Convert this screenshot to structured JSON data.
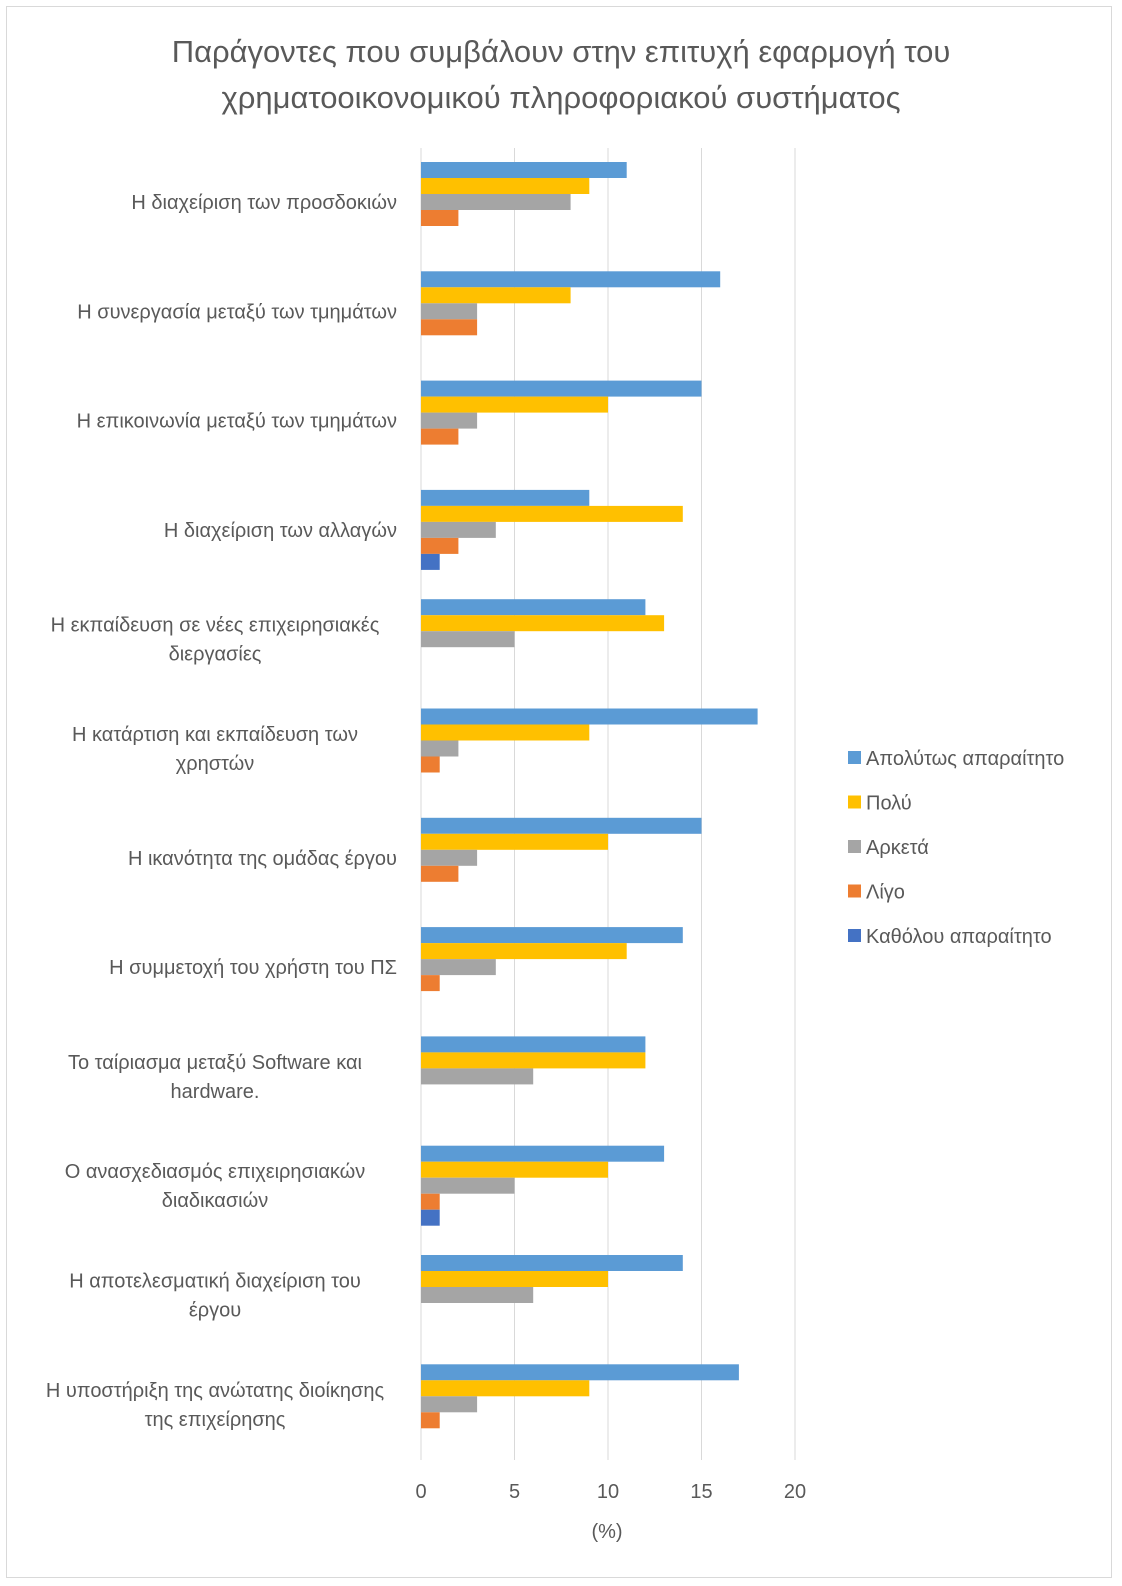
{
  "chart_data": {
    "type": "bar",
    "orientation": "horizontal",
    "title": "Παράγοντες που συμβάλουν στην επιτυχή εφαρμογή του χρηματοοικονομικού πληροφοριακού συστήματος",
    "title_lines": [
      "Παράγοντες που συμβάλουν στην επιτυχή εφαρμογή του",
      "χρηματοοικονομικού πληροφοριακού συστήματος"
    ],
    "xlabel": "(%)",
    "ylabel": "",
    "xlim": [
      0,
      20
    ],
    "xticks": [
      0,
      5,
      10,
      15,
      20
    ],
    "grid": true,
    "legend_position": "right",
    "categories": [
      [
        "Η διαχείριση των προσδοκιών"
      ],
      [
        "Η συνεργασία μεταξύ των τμημάτων"
      ],
      [
        "Η επικοινωνία μεταξύ των τμημάτων"
      ],
      [
        "Η διαχείριση των αλλαγών"
      ],
      [
        "Η εκπαίδευση σε νέες επιχειρησιακές",
        "διεργασίες"
      ],
      [
        "Η κατάρτιση και εκπαίδευση των",
        "χρηστών"
      ],
      [
        "Η ικανότητα της ομάδας έργου"
      ],
      [
        "Η συμμετοχή του χρήστη του ΠΣ"
      ],
      [
        "Το ταίριασμα μεταξύ Software και",
        "hardware."
      ],
      [
        "Ο ανασχεδιασμός επιχειρησιακών",
        "διαδικασιών"
      ],
      [
        "Η αποτελεσματική διαχείριση του",
        "έργου"
      ],
      [
        "Η υποστήριξη της ανώτατης διοίκησης",
        "της επιχείρησης"
      ]
    ],
    "series": [
      {
        "name": "Απολύτως απαραίτητο",
        "color": "#5b9bd5",
        "values": [
          11,
          16,
          15,
          9,
          12,
          18,
          15,
          14,
          12,
          13,
          14,
          17
        ]
      },
      {
        "name": "Πολύ",
        "color": "#ffc000",
        "values": [
          9,
          8,
          10,
          14,
          13,
          9,
          10,
          11,
          12,
          10,
          10,
          9
        ]
      },
      {
        "name": "Αρκετά",
        "color": "#a5a5a5",
        "values": [
          8,
          3,
          3,
          4,
          5,
          2,
          3,
          4,
          6,
          5,
          6,
          3
        ]
      },
      {
        "name": "Λίγο",
        "color": "#ed7d31",
        "values": [
          2,
          3,
          2,
          2,
          0,
          1,
          2,
          1,
          0,
          1,
          0,
          1
        ]
      },
      {
        "name": "Καθόλου απαραίτητο",
        "color": "#4472c4",
        "values": [
          0,
          0,
          0,
          1,
          0,
          0,
          0,
          0,
          0,
          1,
          0,
          0
        ]
      }
    ]
  }
}
